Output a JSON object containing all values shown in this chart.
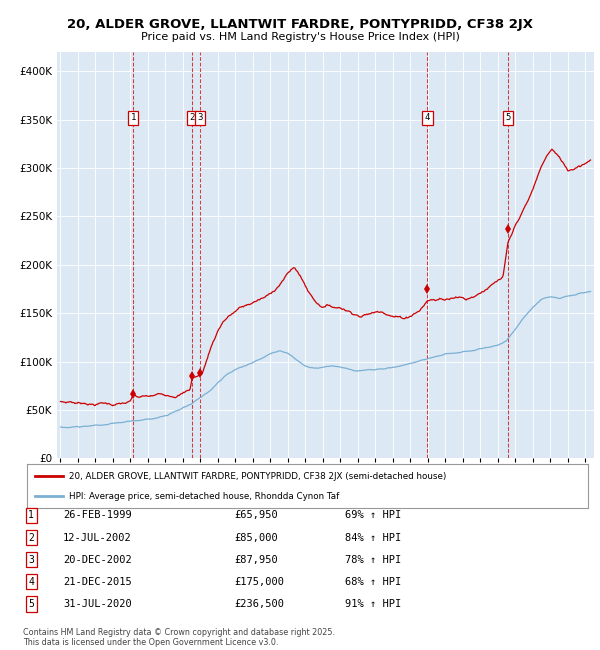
{
  "title_line1": "20, ALDER GROVE, LLANTWIT FARDRE, PONTYPRIDD, CF38 2JX",
  "title_line2": "Price paid vs. HM Land Registry's House Price Index (HPI)",
  "bg_color": "#dce9f5",
  "red_line_color": "#cc0000",
  "blue_line_color": "#7bafd4",
  "transactions": [
    {
      "num": 1,
      "date_label": "26-FEB-1999",
      "price": 65950,
      "pct": "69%",
      "x_year": 1999.15
    },
    {
      "num": 2,
      "date_label": "12-JUL-2002",
      "price": 85000,
      "pct": "84%",
      "x_year": 2002.53
    },
    {
      "num": 3,
      "date_label": "20-DEC-2002",
      "price": 87950,
      "pct": "78%",
      "x_year": 2002.97
    },
    {
      "num": 4,
      "date_label": "21-DEC-2015",
      "price": 175000,
      "pct": "68%",
      "x_year": 2015.97
    },
    {
      "num": 5,
      "date_label": "31-JUL-2020",
      "price": 236500,
      "pct": "91%",
      "x_year": 2020.58
    }
  ],
  "legend_line1": "20, ALDER GROVE, LLANTWIT FARDRE, PONTYPRIDD, CF38 2JX (semi-detached house)",
  "legend_line2": "HPI: Average price, semi-detached house, Rhondda Cynon Taf",
  "footnote_line1": "Contains HM Land Registry data © Crown copyright and database right 2025.",
  "footnote_line2": "This data is licensed under the Open Government Licence v3.0.",
  "ylim": [
    0,
    420000
  ],
  "xlim_start": 1994.8,
  "xlim_end": 2025.5,
  "hpi_keypoints": [
    [
      1995.0,
      32000
    ],
    [
      1995.5,
      31500
    ],
    [
      1996.0,
      32500
    ],
    [
      1996.5,
      32000
    ],
    [
      1997.0,
      33000
    ],
    [
      1997.5,
      33500
    ],
    [
      1998.0,
      34500
    ],
    [
      1998.5,
      35500
    ],
    [
      1999.0,
      36500
    ],
    [
      1999.5,
      37500
    ],
    [
      2000.0,
      39000
    ],
    [
      2000.5,
      40500
    ],
    [
      2001.0,
      43000
    ],
    [
      2001.5,
      46000
    ],
    [
      2002.0,
      50000
    ],
    [
      2002.5,
      54000
    ],
    [
      2003.0,
      60000
    ],
    [
      2003.5,
      67000
    ],
    [
      2004.0,
      76000
    ],
    [
      2004.5,
      84000
    ],
    [
      2005.0,
      89000
    ],
    [
      2005.5,
      93000
    ],
    [
      2006.0,
      97000
    ],
    [
      2006.5,
      101000
    ],
    [
      2007.0,
      106000
    ],
    [
      2007.5,
      110000
    ],
    [
      2008.0,
      107000
    ],
    [
      2008.5,
      100000
    ],
    [
      2009.0,
      94000
    ],
    [
      2009.5,
      91000
    ],
    [
      2010.0,
      92000
    ],
    [
      2010.5,
      93000
    ],
    [
      2011.0,
      91000
    ],
    [
      2011.5,
      89000
    ],
    [
      2012.0,
      87000
    ],
    [
      2012.5,
      87500
    ],
    [
      2013.0,
      88000
    ],
    [
      2013.5,
      88500
    ],
    [
      2014.0,
      90000
    ],
    [
      2014.5,
      92000
    ],
    [
      2015.0,
      94000
    ],
    [
      2015.5,
      97000
    ],
    [
      2016.0,
      100000
    ],
    [
      2016.5,
      102000
    ],
    [
      2017.0,
      104000
    ],
    [
      2017.5,
      105000
    ],
    [
      2018.0,
      107000
    ],
    [
      2018.5,
      108000
    ],
    [
      2019.0,
      110000
    ],
    [
      2019.5,
      112000
    ],
    [
      2020.0,
      114000
    ],
    [
      2020.5,
      118000
    ],
    [
      2021.0,
      130000
    ],
    [
      2021.5,
      143000
    ],
    [
      2022.0,
      155000
    ],
    [
      2022.5,
      163000
    ],
    [
      2023.0,
      165000
    ],
    [
      2023.5,
      164000
    ],
    [
      2024.0,
      166000
    ],
    [
      2024.5,
      168000
    ],
    [
      2025.0,
      170000
    ],
    [
      2025.3,
      171000
    ]
  ],
  "red_keypoints": [
    [
      1995.0,
      58000
    ],
    [
      1995.3,
      57500
    ],
    [
      1995.6,
      58500
    ],
    [
      1995.9,
      57000
    ],
    [
      1996.2,
      57500
    ],
    [
      1996.5,
      58000
    ],
    [
      1996.8,
      57000
    ],
    [
      1997.1,
      57500
    ],
    [
      1997.4,
      58500
    ],
    [
      1997.7,
      58000
    ],
    [
      1998.0,
      57500
    ],
    [
      1998.3,
      58000
    ],
    [
      1998.6,
      58500
    ],
    [
      1998.9,
      59000
    ],
    [
      1999.0,
      59500
    ],
    [
      1999.15,
      65950
    ],
    [
      1999.4,
      63000
    ],
    [
      1999.7,
      63500
    ],
    [
      2000.0,
      63000
    ],
    [
      2000.3,
      63500
    ],
    [
      2000.6,
      64500
    ],
    [
      2000.9,
      65000
    ],
    [
      2001.2,
      65500
    ],
    [
      2001.5,
      66000
    ],
    [
      2001.8,
      68000
    ],
    [
      2002.1,
      70000
    ],
    [
      2002.4,
      73000
    ],
    [
      2002.53,
      85000
    ],
    [
      2002.97,
      87950
    ],
    [
      2003.1,
      90000
    ],
    [
      2003.3,
      100000
    ],
    [
      2003.5,
      112000
    ],
    [
      2003.7,
      122000
    ],
    [
      2004.0,
      135000
    ],
    [
      2004.3,
      145000
    ],
    [
      2004.6,
      150000
    ],
    [
      2004.9,
      154000
    ],
    [
      2005.2,
      158000
    ],
    [
      2005.5,
      160000
    ],
    [
      2005.8,
      162000
    ],
    [
      2006.1,
      165000
    ],
    [
      2006.4,
      167000
    ],
    [
      2006.7,
      169000
    ],
    [
      2007.0,
      172000
    ],
    [
      2007.3,
      178000
    ],
    [
      2007.6,
      185000
    ],
    [
      2007.9,
      192000
    ],
    [
      2008.2,
      198000
    ],
    [
      2008.4,
      200000
    ],
    [
      2008.6,
      195000
    ],
    [
      2008.9,
      185000
    ],
    [
      2009.2,
      175000
    ],
    [
      2009.5,
      168000
    ],
    [
      2009.8,
      163000
    ],
    [
      2010.1,
      162000
    ],
    [
      2010.4,
      163000
    ],
    [
      2010.7,
      161000
    ],
    [
      2011.0,
      162000
    ],
    [
      2011.3,
      160000
    ],
    [
      2011.6,
      158000
    ],
    [
      2011.9,
      157000
    ],
    [
      2012.2,
      155000
    ],
    [
      2012.5,
      157000
    ],
    [
      2012.8,
      158000
    ],
    [
      2013.1,
      160000
    ],
    [
      2013.4,
      162000
    ],
    [
      2013.7,
      160000
    ],
    [
      2014.0,
      158000
    ],
    [
      2014.3,
      157000
    ],
    [
      2014.6,
      156000
    ],
    [
      2014.9,
      158000
    ],
    [
      2015.2,
      162000
    ],
    [
      2015.5,
      165000
    ],
    [
      2015.97,
      175000
    ],
    [
      2016.2,
      177000
    ],
    [
      2016.5,
      176000
    ],
    [
      2016.7,
      178000
    ],
    [
      2017.0,
      177000
    ],
    [
      2017.3,
      180000
    ],
    [
      2017.6,
      183000
    ],
    [
      2017.9,
      182000
    ],
    [
      2018.2,
      180000
    ],
    [
      2018.5,
      183000
    ],
    [
      2018.8,
      186000
    ],
    [
      2019.1,
      190000
    ],
    [
      2019.4,
      194000
    ],
    [
      2019.7,
      197000
    ],
    [
      2020.0,
      200000
    ],
    [
      2020.3,
      203000
    ],
    [
      2020.58,
      236500
    ],
    [
      2020.8,
      245000
    ],
    [
      2021.1,
      258000
    ],
    [
      2021.4,
      268000
    ],
    [
      2021.7,
      278000
    ],
    [
      2022.0,
      290000
    ],
    [
      2022.3,
      305000
    ],
    [
      2022.6,
      318000
    ],
    [
      2022.9,
      328000
    ],
    [
      2023.1,
      332000
    ],
    [
      2023.4,
      325000
    ],
    [
      2023.7,
      318000
    ],
    [
      2024.0,
      310000
    ],
    [
      2024.3,
      312000
    ],
    [
      2024.6,
      316000
    ],
    [
      2025.0,
      320000
    ],
    [
      2025.3,
      325000
    ]
  ]
}
